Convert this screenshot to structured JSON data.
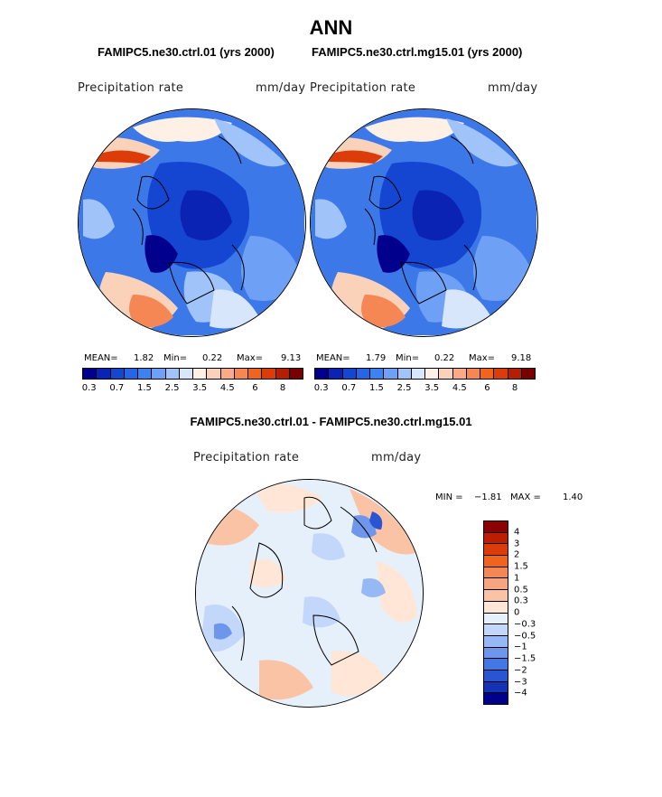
{
  "title": "ANN",
  "panels": [
    {
      "case": "FAMIPC5.ne30.ctrl.01 (yrs 2000)",
      "variable": "Precipitation rate",
      "units": "mm/day",
      "mean_label": "MEAN=",
      "mean": "1.82",
      "min_label": "Min=",
      "min": "0.22",
      "max_label": "Max=",
      "max": "9.13"
    },
    {
      "case": "FAMIPC5.ne30.ctrl.mg15.01 (yrs 2000)",
      "variable": "Precipitation rate",
      "units": "mm/day",
      "mean_label": "MEAN=",
      "mean": "1.79",
      "min_label": "Min=",
      "min": "0.22",
      "max_label": "Max=",
      "max": "9.18"
    }
  ],
  "colorbar": {
    "colors": [
      "#00008c",
      "#0a23b4",
      "#1446d2",
      "#2864e6",
      "#3c82f0",
      "#6ea0f5",
      "#a0c3fa",
      "#d7e6fa",
      "#fff0e6",
      "#fad2b9",
      "#faaa87",
      "#f58755",
      "#f0641e",
      "#dc3c0a",
      "#b41e05",
      "#780000"
    ],
    "tick_labels": [
      "0.3",
      "0.7",
      "1.5",
      "2.5",
      "3.5",
      "4.5",
      "6",
      "8"
    ]
  },
  "diff": {
    "title": "FAMIPC5.ne30.ctrl.01 - FAMIPC5.ne30.ctrl.mg15.01",
    "variable": "Precipitation rate",
    "units": "mm/day",
    "min_label": "MIN =",
    "min": "−1.81",
    "max_label": "MAX =",
    "max": "1.40",
    "colors": [
      "#8c0000",
      "#be1e00",
      "#dc3c0a",
      "#f0641e",
      "#f58755",
      "#f5a582",
      "#fac3a5",
      "#ffe6d7",
      "#e6f0fa",
      "#c3d7fa",
      "#96b9f5",
      "#6e96eb",
      "#4178e6",
      "#2a55d2",
      "#1432b4",
      "#00008c"
    ],
    "tick_labels": [
      "4",
      "3",
      "2",
      "1.5",
      "1",
      "0.5",
      "0.3",
      "0",
      "−0.3",
      "−0.5",
      "−1",
      "−1.5",
      "−2",
      "−3",
      "−4"
    ]
  }
}
